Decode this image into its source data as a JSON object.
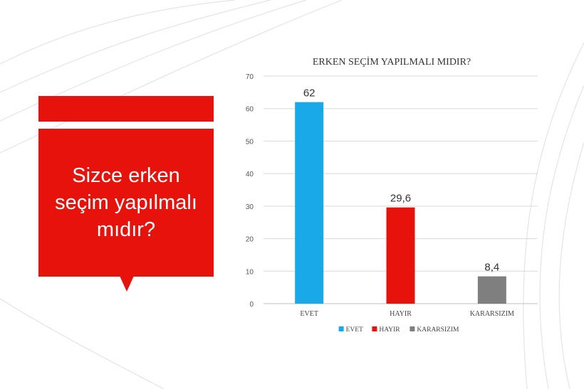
{
  "slide": {
    "question": "Sizce erken seçim yapılmalı mıdır?"
  },
  "chart_data": {
    "type": "bar",
    "title": "ERKEN SEÇİM YAPILMALI MIDIR?",
    "categories": [
      "EVET",
      "HAYIR",
      "KARARSIZIM"
    ],
    "values": [
      62,
      29.6,
      8.4
    ],
    "value_labels": [
      "62",
      "29,6",
      "8,4"
    ],
    "colors": [
      "#1aa9e8",
      "#e8120c",
      "#7f7f7f"
    ],
    "ylim": [
      0,
      70
    ],
    "yticks": [
      0,
      10,
      20,
      30,
      40,
      50,
      60,
      70
    ],
    "grid": true,
    "legend": {
      "position": "bottom",
      "entries": [
        "EVET",
        "HAYIR",
        "KARARSIZIM"
      ]
    },
    "xlabel": "",
    "ylabel": ""
  }
}
